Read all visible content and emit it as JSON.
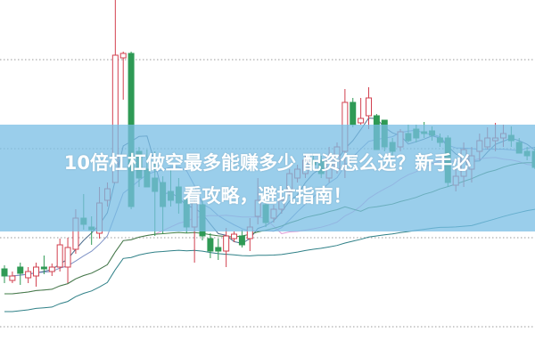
{
  "title": {
    "line1": "10倍杠杠做空最多能赚多少 配资怎么选？新手必",
    "line2": "看攻略，避坑指南！"
  },
  "chart_data": {
    "type": "candlestick",
    "grid": true,
    "colors": {
      "up": "#d2404f",
      "down": "#2f9a55",
      "banner": "#78bee4"
    },
    "moving_averages": [
      {
        "period": 5,
        "color": "#4e6e8e"
      },
      {
        "period": 10,
        "color": "#7f93c6"
      },
      {
        "period": 20,
        "color": "#df9ed8"
      },
      {
        "period": 30,
        "color": "#3f7d45"
      },
      {
        "period": 60,
        "color": "#2f8087"
      }
    ],
    "ohlc": [
      [
        98,
        102,
        82,
        90
      ],
      [
        85,
        95,
        82,
        90
      ],
      [
        100,
        105,
        80,
        93
      ],
      [
        88,
        100,
        82,
        95
      ],
      [
        90,
        105,
        78,
        100
      ],
      [
        100,
        113,
        92,
        98
      ],
      [
        95,
        104,
        90,
        100
      ],
      [
        100,
        132,
        95,
        125
      ],
      [
        100,
        133,
        82,
        122
      ],
      [
        120,
        165,
        115,
        155
      ],
      [
        155,
        182,
        142,
        148
      ],
      [
        145,
        157,
        125,
        142
      ],
      [
        138,
        190,
        132,
        172
      ],
      [
        175,
        195,
        168,
        188
      ],
      [
        195,
        400,
        195,
        338
      ],
      [
        335,
        342,
        288,
        340
      ],
      [
        340,
        342,
        165,
        168
      ],
      [
        230,
        235,
        190,
        200
      ],
      [
        210,
        232,
        190,
        190
      ],
      [
        200,
        230,
        135,
        185
      ],
      [
        195,
        202,
        138,
        168
      ],
      [
        185,
        210,
        168,
        175
      ],
      [
        190,
        200,
        160,
        172
      ],
      [
        175,
        180,
        138,
        145
      ],
      [
        145,
        175,
        105,
        172
      ],
      [
        170,
        175,
        130,
        135
      ],
      [
        132,
        138,
        110,
        118
      ],
      [
        122,
        132,
        108,
        118
      ],
      [
        118,
        144,
        100,
        135
      ],
      [
        132,
        140,
        128,
        137
      ],
      [
        135,
        142,
        122,
        125
      ],
      [
        132,
        155,
        118,
        145
      ],
      [
        157,
        200,
        148,
        175
      ],
      [
        170,
        175,
        145,
        150
      ],
      [
        155,
        170,
        150,
        165
      ],
      [
        165,
        180,
        160,
        175
      ],
      [
        185,
        210,
        180,
        205
      ],
      [
        200,
        215,
        195,
        210
      ],
      [
        205,
        225,
        200,
        220
      ],
      [
        220,
        225,
        210,
        215
      ],
      [
        220,
        225,
        200,
        205
      ],
      [
        200,
        235,
        195,
        225
      ],
      [
        210,
        240,
        205,
        235
      ],
      [
        230,
        300,
        200,
        285
      ],
      [
        285,
        290,
        257,
        260
      ],
      [
        262,
        290,
        260,
        267
      ],
      [
        270,
        302,
        255,
        290
      ],
      [
        270,
        272,
        232,
        232
      ],
      [
        265,
        265,
        230,
        235
      ],
      [
        240,
        245,
        225,
        230
      ],
      [
        235,
        255,
        230,
        252
      ],
      [
        250,
        260,
        240,
        242
      ],
      [
        255,
        260,
        240,
        245
      ],
      [
        252,
        263,
        245,
        250
      ],
      [
        253,
        258,
        242,
        248
      ],
      [
        245,
        250,
        235,
        240
      ],
      [
        245,
        248,
        190,
        195
      ],
      [
        192,
        210,
        185,
        202
      ],
      [
        202,
        240,
        190,
        232
      ],
      [
        210,
        235,
        195,
        225
      ],
      [
        230,
        250,
        220,
        242
      ],
      [
        235,
        257,
        232,
        245
      ],
      [
        242,
        262,
        230,
        245
      ],
      [
        245,
        260,
        235,
        250
      ],
      [
        248,
        258,
        235,
        242
      ],
      [
        240,
        245,
        228,
        228
      ],
      [
        230,
        235,
        220,
        225
      ],
      [
        230,
        235,
        210,
        212
      ]
    ]
  }
}
